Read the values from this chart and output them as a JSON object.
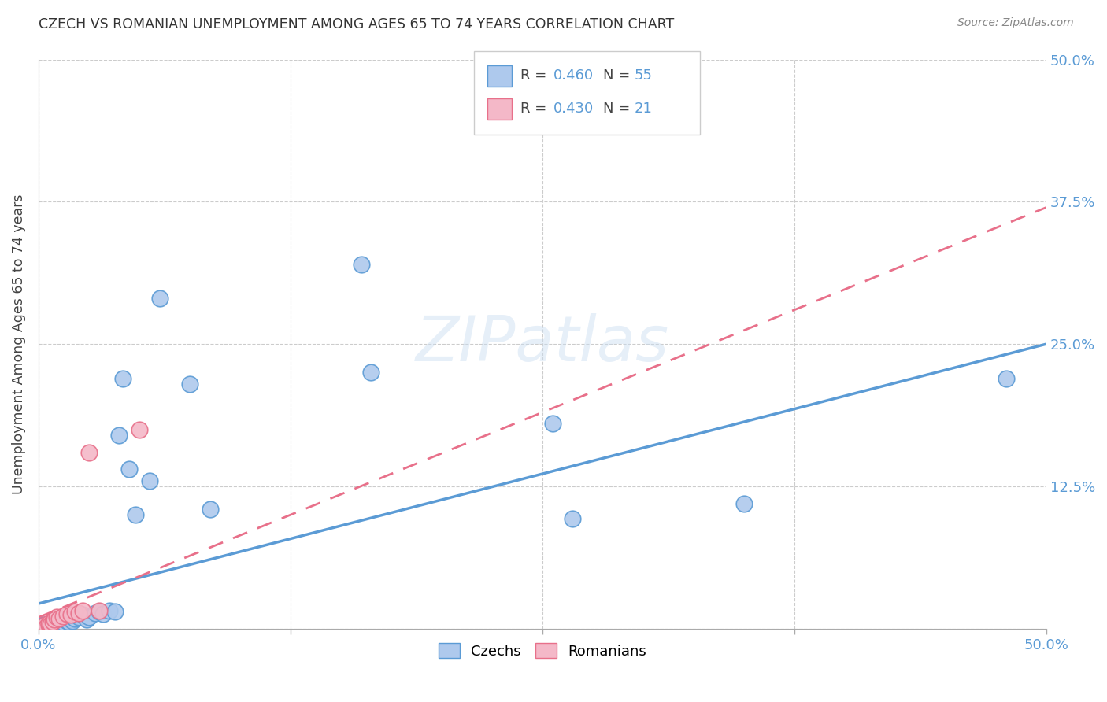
{
  "title": "CZECH VS ROMANIAN UNEMPLOYMENT AMONG AGES 65 TO 74 YEARS CORRELATION CHART",
  "source": "Source: ZipAtlas.com",
  "ylabel": "Unemployment Among Ages 65 to 74 years",
  "xlim": [
    0.0,
    0.5
  ],
  "ylim": [
    0.0,
    0.5
  ],
  "czech_color": "#aec9ed",
  "romanian_color": "#f4b8c8",
  "czech_line_color": "#5b9bd5",
  "romanian_line_color": "#e8708a",
  "watermark": "ZIPatlas",
  "background_color": "#ffffff",
  "grid_color": "#cccccc",
  "czech_points_x": [
    0.001,
    0.001,
    0.002,
    0.002,
    0.002,
    0.003,
    0.003,
    0.003,
    0.003,
    0.004,
    0.004,
    0.004,
    0.005,
    0.005,
    0.005,
    0.006,
    0.006,
    0.007,
    0.007,
    0.008,
    0.008,
    0.009,
    0.01,
    0.01,
    0.011,
    0.012,
    0.013,
    0.014,
    0.015,
    0.016,
    0.017,
    0.018,
    0.02,
    0.022,
    0.024,
    0.025,
    0.028,
    0.03,
    0.032,
    0.035,
    0.038,
    0.04,
    0.042,
    0.045,
    0.048,
    0.055,
    0.06,
    0.075,
    0.085,
    0.16,
    0.165,
    0.255,
    0.265,
    0.35,
    0.48
  ],
  "czech_points_y": [
    0.001,
    0.002,
    0.001,
    0.002,
    0.003,
    0.0,
    0.001,
    0.002,
    0.003,
    0.001,
    0.002,
    0.003,
    0.001,
    0.002,
    0.004,
    0.002,
    0.003,
    0.001,
    0.003,
    0.003,
    0.005,
    0.004,
    0.002,
    0.005,
    0.006,
    0.004,
    0.005,
    0.007,
    0.006,
    0.008,
    0.007,
    0.009,
    0.01,
    0.012,
    0.008,
    0.01,
    0.014,
    0.015,
    0.013,
    0.016,
    0.015,
    0.17,
    0.22,
    0.14,
    0.1,
    0.13,
    0.29,
    0.215,
    0.105,
    0.32,
    0.225,
    0.18,
    0.097,
    0.11,
    0.22
  ],
  "romanian_points_x": [
    0.001,
    0.002,
    0.003,
    0.003,
    0.004,
    0.005,
    0.005,
    0.006,
    0.007,
    0.008,
    0.009,
    0.01,
    0.012,
    0.014,
    0.016,
    0.018,
    0.02,
    0.022,
    0.025,
    0.03,
    0.05
  ],
  "romanian_points_y": [
    0.001,
    0.002,
    0.001,
    0.003,
    0.002,
    0.003,
    0.005,
    0.004,
    0.006,
    0.008,
    0.01,
    0.009,
    0.011,
    0.013,
    0.012,
    0.015,
    0.014,
    0.016,
    0.155,
    0.016,
    0.175
  ],
  "czech_line_x0": 0.0,
  "czech_line_y0": 0.022,
  "czech_line_x1": 0.5,
  "czech_line_y1": 0.25,
  "romanian_line_x0": 0.0,
  "romanian_line_y0": 0.01,
  "romanian_line_x1": 0.5,
  "romanian_line_y1": 0.37
}
